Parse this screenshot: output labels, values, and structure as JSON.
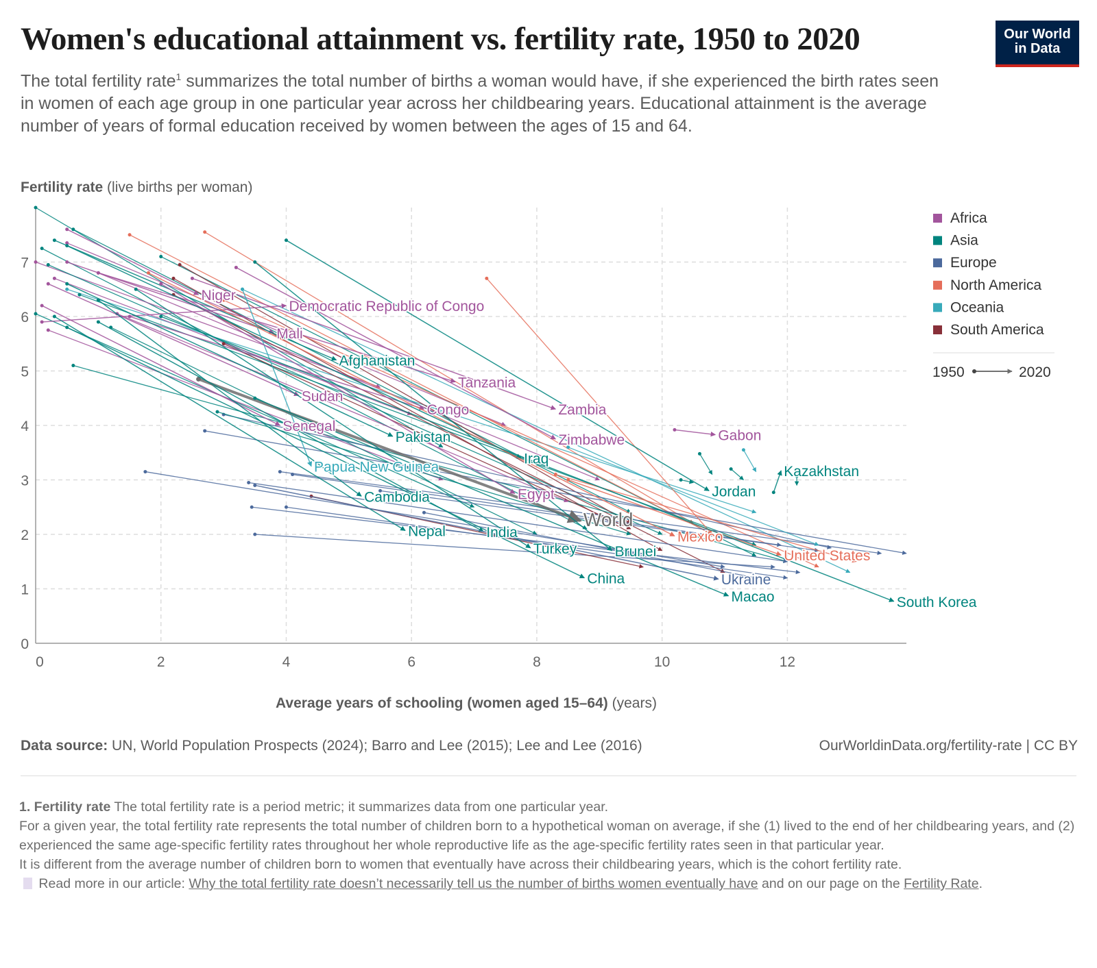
{
  "header": {
    "title": "Women's educational attainment vs. fertility rate, 1950 to 2020",
    "subtitle_a": "The total fertility rate",
    "subtitle_sup": "1",
    "subtitle_b": " summarizes the total number of births a woman would have, if she experienced the birth rates seen in women of each age group in one particular year across her childbearing years. Educational attainment is the average number of years of formal education received by women between the ages of 15 and 64.",
    "logo_line1": "Our World",
    "logo_line2": "in Data"
  },
  "chart_data": {
    "type": "scatter",
    "subtype": "connected-arrows",
    "title": "Women's educational attainment vs. fertility rate, 1950 to 2020",
    "ylabel_bold": "Fertility rate",
    "ylabel_rest": " (live births per woman)",
    "xlabel_bold": "Average years of schooling (women aged 15–64)",
    "xlabel_rest": " (years)",
    "xlim": [
      0,
      13.9
    ],
    "ylim": [
      0,
      8
    ],
    "xticks": [
      0,
      2,
      4,
      6,
      8,
      10,
      12
    ],
    "yticks": [
      0,
      1,
      2,
      3,
      4,
      5,
      6,
      7
    ],
    "grid": true,
    "legend_position": "right",
    "legend": [
      {
        "name": "Africa",
        "color": "#a2559c"
      },
      {
        "name": "Asia",
        "color": "#00847e"
      },
      {
        "name": "Europe",
        "color": "#4c6a9c"
      },
      {
        "name": "North America",
        "color": "#e56e5a"
      },
      {
        "name": "Oceania",
        "color": "#38aaba"
      },
      {
        "name": "South America",
        "color": "#883039"
      }
    ],
    "world_color": "#6d6d6d",
    "timeline": {
      "start": "1950",
      "end": "2020"
    },
    "labeled_series": [
      {
        "name": "Niger",
        "region": "Africa",
        "start": [
          0.5,
          7.6
        ],
        "end": [
          2.6,
          6.4
        ]
      },
      {
        "name": "Democratic Republic of Congo",
        "region": "Africa",
        "start": [
          0.1,
          5.9
        ],
        "end": [
          4.0,
          6.2
        ]
      },
      {
        "name": "Mali",
        "region": "Africa",
        "start": [
          0.5,
          7.0
        ],
        "end": [
          3.8,
          5.7
        ]
      },
      {
        "name": "Afghanistan",
        "region": "Asia",
        "start": [
          0.3,
          7.4
        ],
        "end": [
          4.8,
          5.2
        ]
      },
      {
        "name": "Tanzania",
        "region": "Africa",
        "start": [
          1.0,
          6.8
        ],
        "end": [
          6.7,
          4.8
        ]
      },
      {
        "name": "Sudan",
        "region": "Africa",
        "start": [
          0.2,
          6.6
        ],
        "end": [
          4.2,
          4.55
        ]
      },
      {
        "name": "Congo",
        "region": "Africa",
        "start": [
          1.5,
          6.0
        ],
        "end": [
          6.2,
          4.3
        ]
      },
      {
        "name": "Zambia",
        "region": "Africa",
        "start": [
          2.5,
          6.7
        ],
        "end": [
          8.3,
          4.3
        ]
      },
      {
        "name": "Senegal",
        "region": "Africa",
        "start": [
          0.1,
          6.2
        ],
        "end": [
          3.9,
          4.0
        ]
      },
      {
        "name": "Pakistan",
        "region": "Asia",
        "start": [
          0.5,
          6.6
        ],
        "end": [
          5.7,
          3.8
        ]
      },
      {
        "name": "Zimbabwe",
        "region": "Africa",
        "start": [
          3.2,
          6.9
        ],
        "end": [
          8.3,
          3.75
        ]
      },
      {
        "name": "Gabon",
        "region": "Africa",
        "start": [
          10.2,
          3.92
        ],
        "end": [
          10.85,
          3.83
        ]
      },
      {
        "name": "Iraq",
        "region": "Asia",
        "start": [
          0.5,
          7.3
        ],
        "end": [
          7.75,
          3.4
        ]
      },
      {
        "name": "Papua New Guinea",
        "region": "Oceania",
        "start": [
          3.3,
          6.5
        ],
        "end": [
          4.4,
          3.25
        ]
      },
      {
        "name": "Kazakhstan",
        "region": "Asia",
        "start": [
          11.78,
          2.77
        ],
        "end": [
          11.9,
          3.17
        ]
      },
      {
        "name": "Jordan",
        "region": "Asia",
        "start": [
          4.0,
          7.4
        ],
        "end": [
          10.75,
          2.8
        ]
      },
      {
        "name": "Egypt",
        "region": "Africa",
        "start": [
          2.0,
          6.6
        ],
        "end": [
          7.65,
          2.75
        ]
      },
      {
        "name": "Cambodia",
        "region": "Asia",
        "start": [
          1.0,
          6.3
        ],
        "end": [
          5.2,
          2.7
        ]
      },
      {
        "name": "World",
        "region": "World",
        "start": [
          2.6,
          4.85
        ],
        "end": [
          8.7,
          2.25
        ]
      },
      {
        "name": "Nepal",
        "region": "Asia",
        "start": [
          0.3,
          6.0
        ],
        "end": [
          5.9,
          2.07
        ]
      },
      {
        "name": "India",
        "region": "Asia",
        "start": [
          1.0,
          5.9
        ],
        "end": [
          7.15,
          2.05
        ]
      },
      {
        "name": "Mexico",
        "region": "North America",
        "start": [
          1.8,
          6.8
        ],
        "end": [
          10.2,
          1.97
        ]
      },
      {
        "name": "Turkey",
        "region": "Asia",
        "start": [
          1.6,
          6.5
        ],
        "end": [
          7.9,
          1.75
        ]
      },
      {
        "name": "Brunei",
        "region": "Asia",
        "start": [
          3.5,
          7.0
        ],
        "end": [
          9.2,
          1.7
        ]
      },
      {
        "name": "United States",
        "region": "North America",
        "start": [
          8.5,
          3.0
        ],
        "end": [
          11.9,
          1.62
        ]
      },
      {
        "name": "China",
        "region": "Asia",
        "start": [
          0.5,
          5.8
        ],
        "end": [
          8.76,
          1.2
        ]
      },
      {
        "name": "Ukraine",
        "region": "Europe",
        "start": [
          3.5,
          2.9
        ],
        "end": [
          10.9,
          1.18
        ]
      },
      {
        "name": "Macao",
        "region": "Asia",
        "start": [
          3.5,
          4.5
        ],
        "end": [
          11.06,
          0.87
        ]
      },
      {
        "name": "South Korea",
        "region": "Asia",
        "start": [
          2.0,
          6.0
        ],
        "end": [
          13.7,
          0.77
        ]
      }
    ],
    "other_series": [
      [
        "Asia",
        0.0,
        8.0,
        6.5,
        3.6
      ],
      [
        "Asia",
        0.6,
        7.6,
        9.5,
        2.4
      ],
      [
        "Africa",
        0.5,
        7.35,
        7.5,
        4.0
      ],
      [
        "Asia",
        0.1,
        7.25,
        8.8,
        2.1
      ],
      [
        "Africa",
        0.0,
        7.0,
        5.5,
        4.7
      ],
      [
        "Asia",
        0.2,
        6.95,
        10.0,
        2.0
      ],
      [
        "Africa",
        1.0,
        6.8,
        9.0,
        3.0
      ],
      [
        "Asia",
        2.0,
        7.1,
        11.5,
        1.6
      ],
      [
        "North America",
        1.5,
        7.5,
        10.8,
        2.0
      ],
      [
        "North America",
        2.7,
        7.55,
        10.5,
        2.2
      ],
      [
        "Oceania",
        0.5,
        6.5,
        11.5,
        2.4
      ],
      [
        "Africa",
        0.3,
        6.7,
        6.0,
        4.2
      ],
      [
        "South America",
        2.3,
        6.95,
        9.5,
        2.2
      ],
      [
        "South America",
        2.2,
        6.7,
        10.0,
        1.7
      ],
      [
        "South America",
        2.2,
        6.4,
        11.0,
        1.3
      ],
      [
        "Asia",
        0.0,
        6.05,
        7.0,
        2.5
      ],
      [
        "Asia",
        0.6,
        5.1,
        12.0,
        1.5
      ],
      [
        "Asia",
        0.7,
        6.4,
        11.5,
        1.8
      ],
      [
        "Africa",
        0.2,
        5.75,
        6.5,
        3.0
      ],
      [
        "Asia",
        1.2,
        5.8,
        8.0,
        2.0
      ],
      [
        "Oceania",
        3.3,
        6.5,
        13.0,
        1.3
      ],
      [
        "North America",
        3.0,
        6.3,
        12.5,
        1.4
      ],
      [
        "Europe",
        1.75,
        3.15,
        11.0,
        1.4
      ],
      [
        "Europe",
        3.4,
        2.95,
        12.0,
        1.5
      ],
      [
        "Europe",
        3.45,
        2.5,
        12.2,
        1.3
      ],
      [
        "Europe",
        3.5,
        2.0,
        11.8,
        1.4
      ],
      [
        "Europe",
        3.9,
        3.15,
        13.5,
        1.65
      ],
      [
        "Europe",
        4.0,
        2.5,
        12.0,
        1.2
      ],
      [
        "Europe",
        2.7,
        3.9,
        13.9,
        1.65
      ],
      [
        "Europe",
        3.0,
        4.2,
        12.7,
        1.75
      ],
      [
        "Europe",
        5.5,
        2.8,
        12.5,
        1.7
      ],
      [
        "Europe",
        6.2,
        2.4,
        11.5,
        1.2
      ],
      [
        "Europe",
        4.1,
        3.1,
        11.9,
        1.8
      ],
      [
        "North America",
        7.2,
        6.7,
        10.8,
        2.0
      ],
      [
        "Asia",
        10.6,
        3.48,
        10.8,
        3.1
      ],
      [
        "Asia",
        11.1,
        3.2,
        11.3,
        3.0
      ],
      [
        "Oceania",
        11.3,
        3.55,
        11.5,
        3.15
      ],
      [
        "Asia",
        12.15,
        3.07,
        12.15,
        2.9
      ],
      [
        "Asia",
        10.3,
        3.0,
        10.5,
        2.95
      ],
      [
        "South America",
        4.4,
        2.7,
        9.7,
        1.4
      ],
      [
        "North America",
        8.3,
        3.1,
        13.1,
        1.5
      ],
      [
        "Oceania",
        8.5,
        3.6,
        12.5,
        1.8
      ],
      [
        "Africa",
        1.3,
        6.05,
        8.5,
        2.6
      ],
      [
        "Asia",
        2.9,
        4.25,
        9.5,
        2.0
      ],
      [
        "South America",
        3.0,
        5.5,
        9.5,
        2.1
      ]
    ]
  },
  "footer": {
    "source_bold": "Data source:",
    "source_rest": " UN, World Population Prospects (2024); Barro and Lee (2015); Lee and Lee (2016)",
    "url": "OurWorldinData.org/fertility-rate | CC BY",
    "note_head": "1. Fertility rate",
    "note_1": " The total fertility rate is a period metric; it summarizes data from one particular year.",
    "note_2": "For a given year, the total fertility rate represents the total number of children born to a hypothetical woman on average, if she (1) lived to the end of her childbearing years, and (2) experienced the same age-specific fertility rates throughout her whole reproductive life as the age-specific fertility rates seen in that particular year.",
    "note_3": "It is different from the average number of children born to women that eventually have across their childbearing years, which is the cohort fertility rate.",
    "read_more": " Read more in our article: ",
    "article_link": "Why the total fertility rate doesn’t necessarily tell us the number of births women eventually have",
    "and_page": " and on our page on the ",
    "page_link": "Fertility Rate",
    "end": "."
  }
}
